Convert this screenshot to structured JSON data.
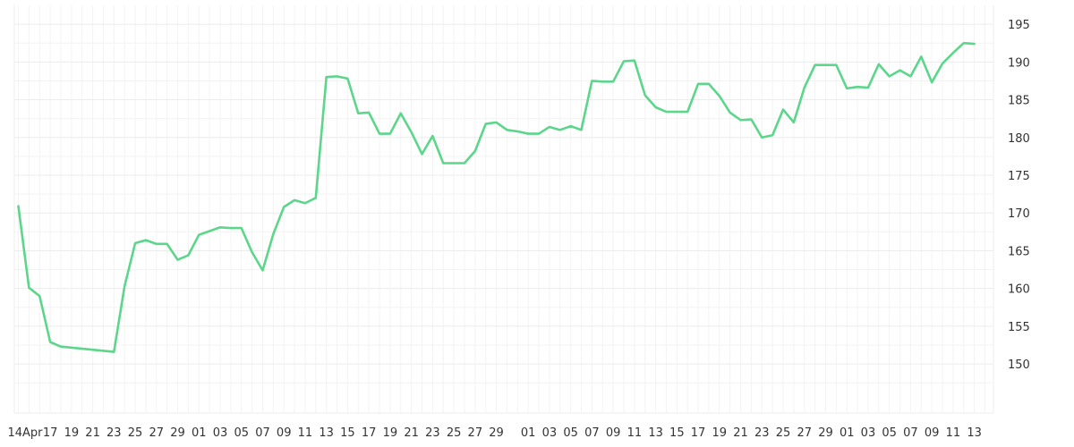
{
  "chart_data": {
    "type": "line",
    "title": "",
    "xlabel": "",
    "ylabel": "",
    "ylim": [
      143.5,
      197.5
    ],
    "y_ticks": [
      150,
      155,
      160,
      165,
      170,
      175,
      180,
      185,
      190,
      195
    ],
    "y_tick_labels": [
      "150",
      "155",
      "160",
      "165",
      "170",
      "175",
      "180",
      "185",
      "190",
      "195"
    ],
    "y_axis_position": "right",
    "grid": true,
    "x_tick_labels": [
      "14Apr",
      "17",
      "19",
      "21",
      "23",
      "25",
      "27",
      "29",
      "01",
      "03",
      "05",
      "07",
      "09",
      "11",
      "13",
      "15",
      "17",
      "19",
      "21",
      "23",
      "25",
      "27",
      "29",
      "01",
      "03",
      "05",
      "07",
      "09",
      "11",
      "13",
      "15",
      "17",
      "19",
      "21",
      "23",
      "25",
      "27",
      "29",
      "01",
      "03",
      "05",
      "07",
      "09",
      "11",
      "13"
    ],
    "x_tick_positions": [
      0,
      3,
      5,
      7,
      9,
      11,
      13,
      15,
      17,
      19,
      21,
      23,
      25,
      27,
      29,
      31,
      33,
      35,
      37,
      39,
      41,
      43,
      45,
      48,
      50,
      52,
      54,
      56,
      58,
      60,
      62,
      64,
      66,
      68,
      70,
      72,
      74,
      76,
      78,
      80,
      82,
      84,
      86,
      88,
      90
    ],
    "x_range": [
      0,
      91
    ],
    "colors": {
      "series": "#5cd68a"
    },
    "series": [
      {
        "name": "",
        "x": [
          0,
          1,
          2,
          3,
          4,
          9,
          10,
          11,
          12,
          13,
          14,
          15,
          16,
          17,
          18,
          19,
          20,
          21,
          22,
          23,
          24,
          25,
          26,
          27,
          28,
          29,
          30,
          31,
          32,
          33,
          34,
          35,
          36,
          37,
          38,
          39,
          40,
          41,
          42,
          43,
          44,
          45,
          46,
          47,
          48,
          49,
          50,
          51,
          52,
          53,
          54,
          55,
          56,
          57,
          58,
          59,
          60,
          61,
          62,
          63,
          64,
          65,
          66,
          67,
          68,
          69,
          70,
          71,
          72,
          73,
          74,
          75,
          76,
          77,
          78,
          79,
          80,
          81,
          82,
          83,
          84,
          85,
          86,
          87,
          88,
          89,
          90
        ],
        "values": [
          170.9,
          160.1,
          159.0,
          152.9,
          152.3,
          151.6,
          160.3,
          166.0,
          166.4,
          165.9,
          165.9,
          163.8,
          164.4,
          167.1,
          167.6,
          168.1,
          168.0,
          168.0,
          164.8,
          162.4,
          167.2,
          170.8,
          171.7,
          171.3,
          172.0,
          188.0,
          188.1,
          187.8,
          183.2,
          183.3,
          180.5,
          180.5,
          183.2,
          180.7,
          177.8,
          180.2,
          176.6,
          176.6,
          176.6,
          178.2,
          181.8,
          182.0,
          181.0,
          180.8,
          180.5,
          180.5,
          181.4,
          181.0,
          181.5,
          181.0,
          187.5,
          187.4,
          187.4,
          190.1,
          190.2,
          185.6,
          184.0,
          183.4,
          183.4,
          183.4,
          187.1,
          187.1,
          185.5,
          183.3,
          182.3,
          182.4,
          180.0,
          180.3,
          183.7,
          182.0,
          186.6,
          189.6,
          189.6,
          189.6,
          186.5,
          186.7,
          186.6,
          189.7,
          188.1,
          188.9,
          188.1,
          190.7,
          187.3,
          189.8,
          191.2,
          192.5,
          192.4
        ]
      }
    ]
  }
}
